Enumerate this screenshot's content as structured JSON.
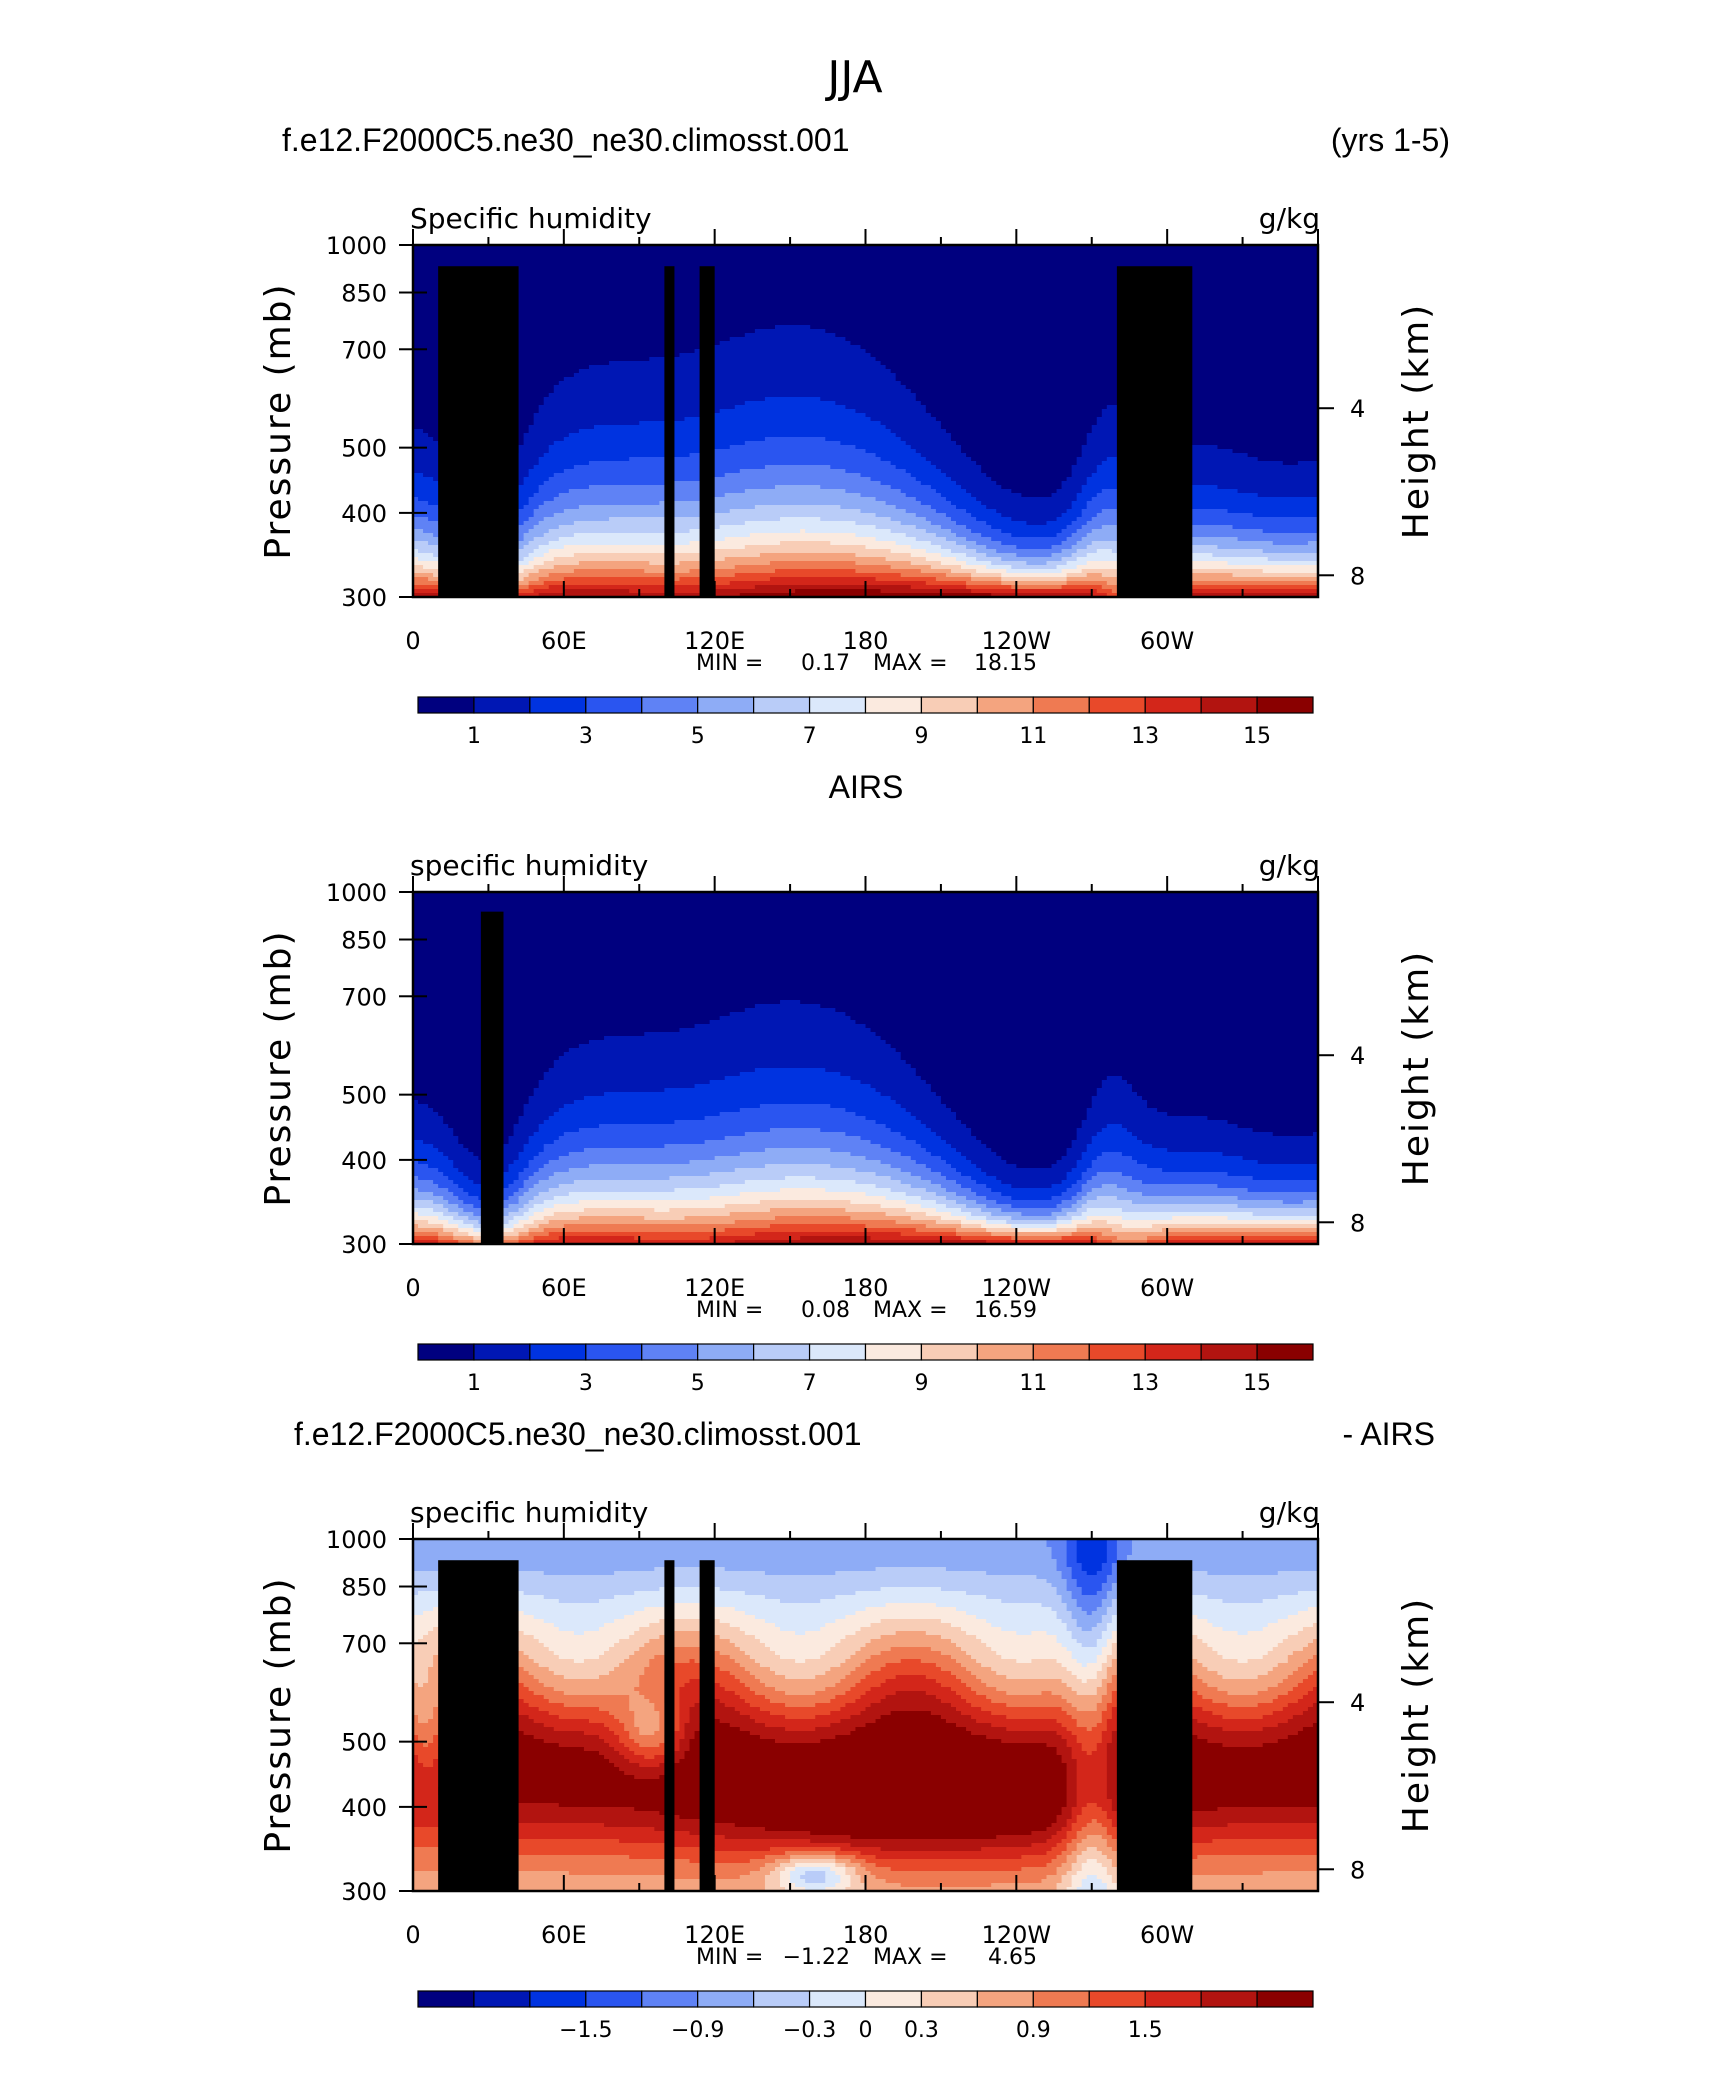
{
  "figure": {
    "title": "JJA"
  },
  "colormaps": {
    "absolute": [
      "#00007f",
      "#0017b4",
      "#0033e0",
      "#2a55f0",
      "#5f82f5",
      "#8eacf6",
      "#b9ccf8",
      "#dbe8fb",
      "#fbeadf",
      "#f8cdb6",
      "#f4a47f",
      "#ef7a52",
      "#e8492a",
      "#d3261a",
      "#b21410",
      "#8a0000"
    ],
    "difference": [
      "#00007f",
      "#0017b4",
      "#0033e0",
      "#2a55f0",
      "#5f82f5",
      "#8eacf6",
      "#b9ccf8",
      "#dbe8fb",
      "#fbeadf",
      "#f8cdb6",
      "#f4a47f",
      "#ef7a52",
      "#e8492a",
      "#d3261a",
      "#b21410",
      "#8a0000"
    ]
  },
  "chart_data": [
    {
      "type": "heatmap",
      "case_title": "f.e12.F2000C5.ne30_ne30.climosst.001",
      "case_right": "(yrs 1-5)",
      "variable": "Specific humidity",
      "units": "g/kg",
      "ylabel": "Pressure (mb)",
      "y2label": "Height (km)",
      "x_ticks": [
        "0",
        "60E",
        "120E",
        "180",
        "120W",
        "60W"
      ],
      "x_tick_lon": [
        0,
        60,
        120,
        180,
        240,
        300
      ],
      "xlim": [
        0,
        360
      ],
      "y_ticks": [
        "300",
        "400",
        "500",
        "700",
        "850",
        "1000"
      ],
      "y_tick_p": [
        300,
        400,
        500,
        700,
        850,
        1000
      ],
      "ylim": [
        1000,
        300
      ],
      "height_ticks": [
        "8",
        "4"
      ],
      "height_km": [
        8,
        4
      ],
      "min_label": "MIN =",
      "min": "0.17",
      "max_label": "MAX =",
      "max": "18.15",
      "colorbar_levels": [
        0,
        1,
        2,
        3,
        4,
        5,
        6,
        7,
        8,
        9,
        10,
        11,
        12,
        13,
        14,
        15,
        16
      ],
      "colorbar_labels": [
        "1",
        "3",
        "5",
        "7",
        "9",
        "11",
        "13",
        "15"
      ],
      "kind": "model"
    },
    {
      "type": "heatmap",
      "case_title": "AIRS",
      "case_right": "",
      "variable": "specific humidity",
      "units": "g/kg",
      "ylabel": "Pressure (mb)",
      "y2label": "Height (km)",
      "x_ticks": [
        "0",
        "60E",
        "120E",
        "180",
        "120W",
        "60W"
      ],
      "x_tick_lon": [
        0,
        60,
        120,
        180,
        240,
        300
      ],
      "xlim": [
        0,
        360
      ],
      "y_ticks": [
        "300",
        "400",
        "500",
        "700",
        "850",
        "1000"
      ],
      "y_tick_p": [
        300,
        400,
        500,
        700,
        850,
        1000
      ],
      "ylim": [
        1000,
        300
      ],
      "height_ticks": [
        "8",
        "4"
      ],
      "height_km": [
        8,
        4
      ],
      "min_label": "MIN =",
      "min": "0.08",
      "max_label": "MAX =",
      "max": "16.59",
      "colorbar_levels": [
        0,
        1,
        2,
        3,
        4,
        5,
        6,
        7,
        8,
        9,
        10,
        11,
        12,
        13,
        14,
        15,
        16
      ],
      "colorbar_labels": [
        "1",
        "3",
        "5",
        "7",
        "9",
        "11",
        "13",
        "15"
      ],
      "kind": "obs"
    },
    {
      "type": "heatmap",
      "case_title": "f.e12.F2000C5.ne30_ne30.climosst.001",
      "case_right": "- AIRS",
      "variable": "specific humidity",
      "units": "g/kg",
      "ylabel": "Pressure (mb)",
      "y2label": "Height (km)",
      "x_ticks": [
        "0",
        "60E",
        "120E",
        "180",
        "120W",
        "60W"
      ],
      "x_tick_lon": [
        0,
        60,
        120,
        180,
        240,
        300
      ],
      "xlim": [
        0,
        360
      ],
      "y_ticks": [
        "300",
        "400",
        "500",
        "700",
        "850",
        "1000"
      ],
      "y_tick_p": [
        300,
        400,
        500,
        700,
        850,
        1000
      ],
      "ylim": [
        1000,
        300
      ],
      "height_ticks": [
        "8",
        "4"
      ],
      "height_km": [
        8,
        4
      ],
      "min_label": "MIN =",
      "min": "−1.22",
      "max_label": "MAX =",
      "max": "4.65",
      "colorbar_levels": [
        -2.4,
        -2.1,
        -1.8,
        -1.5,
        -1.2,
        -0.9,
        -0.6,
        -0.3,
        0,
        0.3,
        0.6,
        0.9,
        1.2,
        1.5,
        1.8,
        2.1,
        2.4
      ],
      "colorbar_labels": [
        "−1.5",
        "−0.9",
        "−0.3",
        "0",
        "0.3",
        "0.9",
        "1.5"
      ],
      "kind": "diff"
    }
  ]
}
